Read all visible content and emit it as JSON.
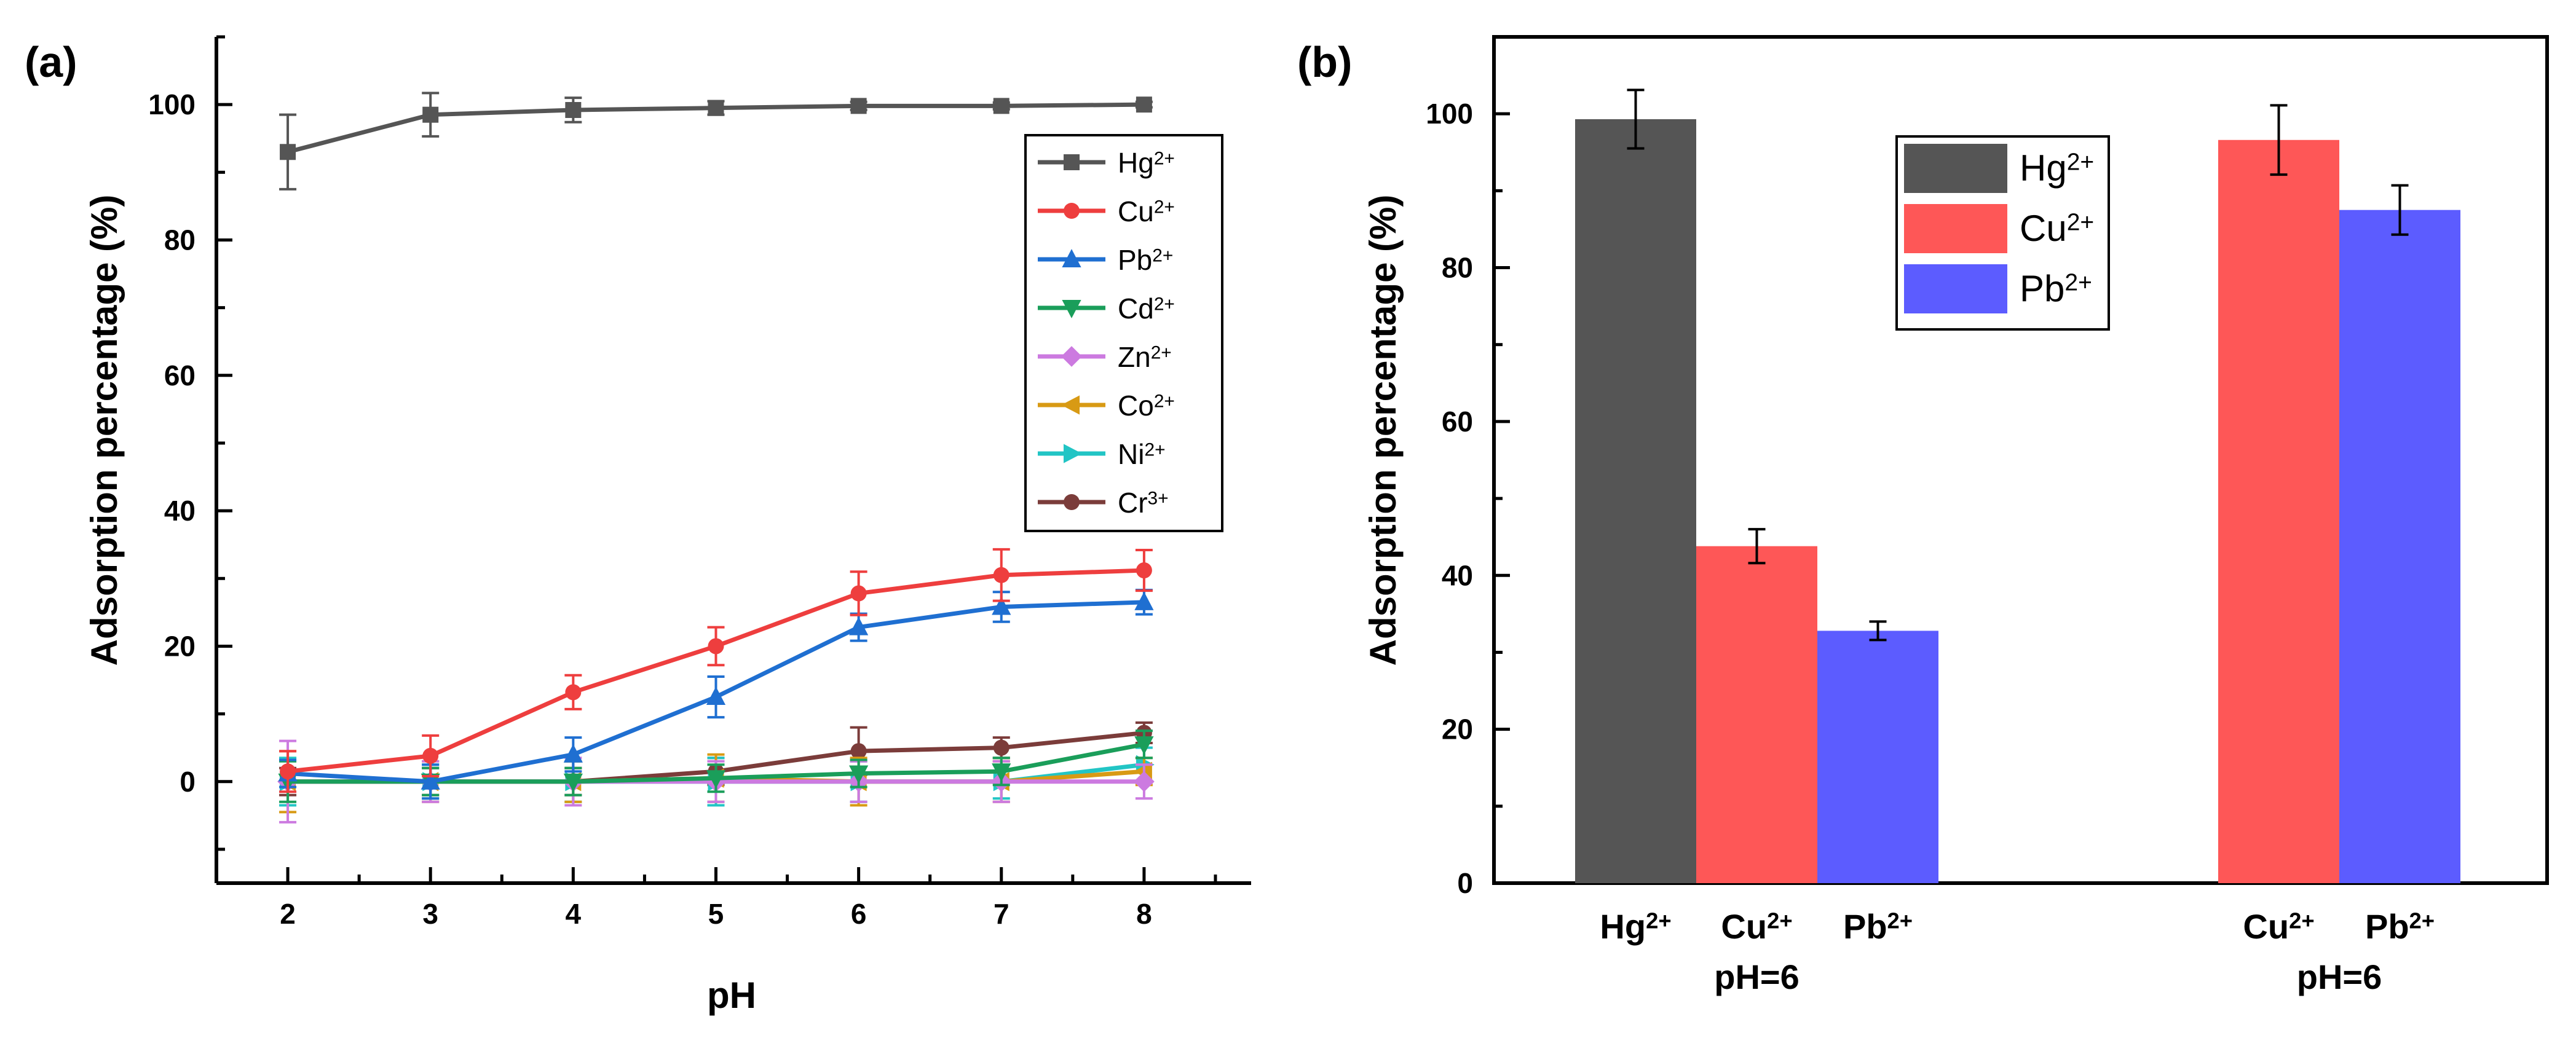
{
  "chart_data": [
    {
      "panel_label": "(a)",
      "type": "line",
      "xlabel": "pH",
      "ylabel": "Adsorption percentage (%)",
      "x": [
        2,
        3,
        4,
        5,
        6,
        7,
        8
      ],
      "xlim": [
        1.5,
        8.75
      ],
      "ylim": [
        -15,
        110
      ],
      "xticks": [
        "2",
        "3",
        "4",
        "5",
        "6",
        "7",
        "8"
      ],
      "yticks": [
        0,
        20,
        40,
        60,
        80,
        100
      ],
      "legend_position": "top-right",
      "series": [
        {
          "name": "Hg",
          "sup": "2+",
          "color": "#555555",
          "marker": "square",
          "values": [
            93,
            98.5,
            99.2,
            99.5,
            99.8,
            99.8,
            100
          ],
          "errors": [
            5.5,
            3.2,
            1.8,
            1,
            0.6,
            0.5,
            0.4
          ]
        },
        {
          "name": "Cu",
          "sup": "2+",
          "color": "#ee3e3e",
          "marker": "circle",
          "values": [
            1.5,
            3.8,
            13.2,
            20,
            27.8,
            30.5,
            31.2
          ],
          "errors": [
            3,
            3,
            2.5,
            2.8,
            3.2,
            3.8,
            3
          ]
        },
        {
          "name": "Pb",
          "sup": "2+",
          "color": "#1f6fd1",
          "marker": "triangle-up",
          "values": [
            1.2,
            0,
            4,
            12.5,
            22.8,
            25.8,
            26.5
          ],
          "errors": [
            2,
            2.5,
            2.5,
            3,
            2,
            2.2,
            1.8
          ]
        },
        {
          "name": "Cd",
          "sup": "2+",
          "color": "#1a9e5a",
          "marker": "triangle-down",
          "values": [
            0,
            0,
            0,
            0.5,
            1.2,
            1.5,
            5.5
          ],
          "errors": [
            3,
            2,
            2,
            2,
            2,
            2,
            2
          ]
        },
        {
          "name": "Zn",
          "sup": "2+",
          "color": "#cc7ae0",
          "marker": "diamond",
          "values": [
            0,
            0,
            0,
            0,
            0,
            0,
            0
          ],
          "errors": [
            6,
            3,
            3.5,
            3,
            3,
            3,
            2.5
          ]
        },
        {
          "name": "Co",
          "sup": "2+",
          "color": "#d89a14",
          "marker": "triangle-left",
          "values": [
            0,
            0,
            0,
            0.5,
            0,
            0,
            1.5
          ],
          "errors": [
            4.5,
            3,
            3,
            3.5,
            3.5,
            3,
            2
          ]
        },
        {
          "name": "Ni",
          "sup": "2+",
          "color": "#22c5c5",
          "marker": "triangle-right",
          "values": [
            0,
            0,
            0,
            0,
            0,
            0,
            2.5
          ],
          "errors": [
            3.5,
            2.5,
            3,
            3.5,
            3,
            2.5,
            2.5
          ]
        },
        {
          "name": "Cr",
          "sup": "3+",
          "color": "#7b3c3a",
          "marker": "circle",
          "values": [
            0,
            0,
            0,
            1.5,
            4.5,
            5,
            7.2
          ],
          "errors": [
            2,
            2,
            2,
            2,
            3.5,
            1.5,
            1.5
          ]
        }
      ]
    },
    {
      "panel_label": "(b)",
      "type": "bar",
      "ylabel": "Adsorption percentage (%)",
      "ylim": [
        0,
        110
      ],
      "yticks": [
        0,
        20,
        40,
        60,
        80,
        100
      ],
      "legend_position": "top-center",
      "legend": [
        {
          "name": "Hg",
          "sup": "2+",
          "color": "#555555"
        },
        {
          "name": "Cu",
          "sup": "2+",
          "color": "#fe5757"
        },
        {
          "name": "Pb",
          "sup": "2+",
          "color": "#5c5cff"
        }
      ],
      "groups": [
        {
          "label": "pH=6",
          "bars": [
            {
              "name": "Hg",
              "sup": "2+",
              "value": 99.3,
              "error": 3.8,
              "color": "#555555"
            },
            {
              "name": "Cu",
              "sup": "2+",
              "value": 43.8,
              "error": 2.2,
              "color": "#fe5757"
            },
            {
              "name": "Pb",
              "sup": "2+",
              "value": 32.8,
              "error": 1.2,
              "color": "#5c5cff"
            }
          ]
        },
        {
          "label": "pH=6",
          "bars": [
            {
              "name": "Cu",
              "sup": "2+",
              "value": 96.6,
              "error": 4.5,
              "color": "#fe5757"
            },
            {
              "name": "Pb",
              "sup": "2+",
              "value": 87.5,
              "error": 3.2,
              "color": "#5c5cff"
            }
          ]
        }
      ]
    }
  ]
}
